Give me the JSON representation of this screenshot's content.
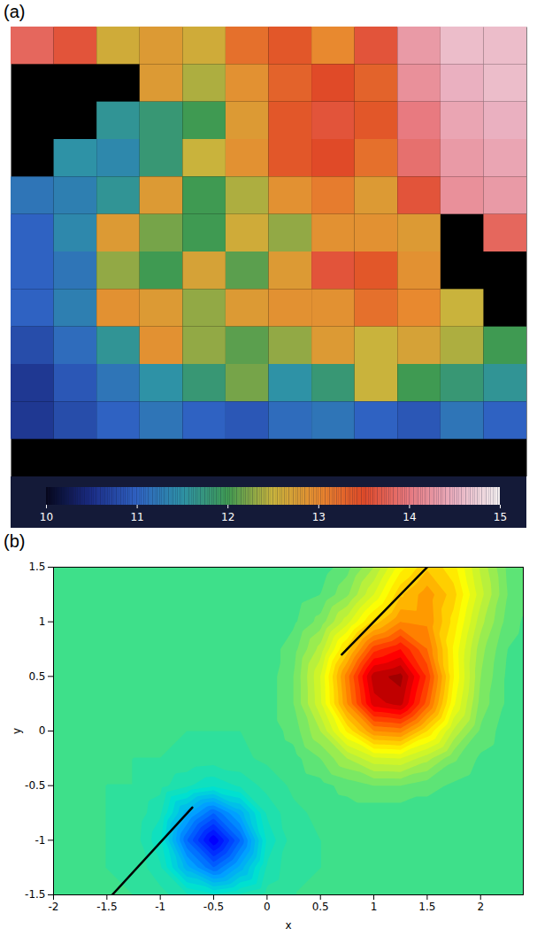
{
  "chart_data": [
    {
      "type": "heatmap",
      "panel": "(a)",
      "tick_labels": false,
      "cells": [
        [
          13.8,
          13.6,
          12.6,
          12.8,
          12.6,
          13.2,
          13.4,
          13.0,
          13.6,
          14.3,
          14.6,
          14.6
        ],
        [
          null,
          null,
          null,
          12.8,
          12.4,
          12.9,
          13.3,
          13.5,
          13.3,
          14.2,
          14.5,
          14.6
        ],
        [
          null,
          null,
          11.6,
          11.8,
          12.0,
          12.8,
          13.4,
          13.6,
          13.4,
          14.0,
          14.4,
          14.5
        ],
        [
          null,
          11.5,
          11.4,
          11.8,
          12.5,
          12.9,
          13.4,
          13.5,
          13.2,
          13.9,
          14.3,
          14.4
        ],
        [
          11.2,
          11.3,
          11.6,
          12.8,
          12.0,
          12.4,
          12.9,
          13.1,
          12.8,
          13.6,
          14.2,
          14.3
        ],
        [
          11.0,
          11.4,
          12.8,
          12.2,
          12.0,
          12.6,
          12.3,
          12.9,
          12.9,
          12.8,
          null,
          13.8
        ],
        [
          11.0,
          11.2,
          12.3,
          12.0,
          12.7,
          12.1,
          12.8,
          13.6,
          13.4,
          12.9,
          null,
          null
        ],
        [
          11.0,
          11.3,
          12.9,
          12.8,
          12.3,
          12.8,
          12.9,
          12.9,
          13.2,
          13.0,
          12.5,
          null
        ],
        [
          10.8,
          11.1,
          11.6,
          12.9,
          12.3,
          12.1,
          12.3,
          12.8,
          12.5,
          12.7,
          12.4,
          12.0
        ],
        [
          10.6,
          10.9,
          11.2,
          11.5,
          11.8,
          12.2,
          11.5,
          11.8,
          12.5,
          12.0,
          11.8,
          11.6
        ],
        [
          10.6,
          10.8,
          11.0,
          11.2,
          11.0,
          10.9,
          11.1,
          11.2,
          11.0,
          10.9,
          11.2,
          11.0
        ],
        [
          null,
          null,
          null,
          null,
          null,
          null,
          null,
          null,
          null,
          null,
          null,
          null
        ]
      ],
      "colorbar": {
        "range": [
          10,
          15
        ],
        "ticks": [
          10,
          11,
          12,
          13,
          14,
          15
        ]
      }
    },
    {
      "type": "contour",
      "panel": "(b)",
      "x_label": "x",
      "y_label": "y",
      "x": [
        -2,
        -1.75,
        -1.5,
        -1.25,
        -1,
        -0.75,
        -0.5,
        -0.25,
        0,
        0.25,
        0.5,
        0.75,
        1,
        1.25,
        1.5,
        1.75,
        2,
        2.25,
        2.5
      ],
      "y": [
        -1.5,
        -1.25,
        -1,
        -0.75,
        -0.5,
        -0.25,
        0,
        0.25,
        0.5,
        0.75,
        1,
        1.25,
        1.5
      ],
      "values": [
        [
          0,
          0,
          0,
          0,
          -0.03,
          -0.09,
          -0.14,
          -0.09,
          -0.03,
          0,
          0,
          0,
          0,
          0,
          0,
          0,
          0,
          0,
          0
        ],
        [
          0,
          0,
          0,
          -0.01,
          -0.09,
          -0.33,
          -0.5,
          -0.33,
          -0.09,
          -0.01,
          0,
          0,
          0,
          0,
          0,
          0,
          0,
          0,
          0
        ],
        [
          0,
          0,
          0,
          -0.02,
          -0.14,
          -0.5,
          -0.75,
          -0.5,
          -0.14,
          -0.02,
          0,
          0,
          0,
          0,
          0,
          0,
          0,
          0,
          0
        ],
        [
          0,
          0,
          0,
          -0.01,
          -0.09,
          -0.33,
          -0.5,
          -0.33,
          -0.09,
          -0.01,
          0.01,
          0.02,
          0.02,
          0.02,
          0.02,
          0.01,
          0,
          0,
          0
        ],
        [
          0,
          0,
          0,
          0,
          -0.03,
          -0.09,
          -0.14,
          -0.09,
          -0.03,
          0.01,
          0.03,
          0.07,
          0.1,
          0.1,
          0.07,
          0.04,
          0.01,
          0,
          0
        ],
        [
          0,
          0,
          0,
          0,
          0,
          -0.01,
          -0.02,
          -0.01,
          0.01,
          0.03,
          0.1,
          0.2,
          0.29,
          0.3,
          0.22,
          0.11,
          0.04,
          0.01,
          0
        ],
        [
          0,
          0,
          0,
          0,
          0,
          0,
          0,
          0,
          0.02,
          0.07,
          0.2,
          0.41,
          0.6,
          0.62,
          0.45,
          0.24,
          0.09,
          0.02,
          0
        ],
        [
          0,
          0,
          0,
          0,
          0,
          0,
          0,
          0,
          0.02,
          0.1,
          0.29,
          0.6,
          0.88,
          0.92,
          0.68,
          0.36,
          0.13,
          0.04,
          0.01
        ],
        [
          0,
          0,
          0,
          0,
          0,
          0,
          0,
          0,
          0.02,
          0.1,
          0.3,
          0.63,
          0.93,
          0.97,
          0.74,
          0.4,
          0.15,
          0.04,
          0.01
        ],
        [
          0,
          0,
          0,
          0,
          0,
          0,
          0,
          0,
          0.02,
          0.08,
          0.22,
          0.47,
          0.73,
          0.8,
          0.65,
          0.39,
          0.17,
          0.05,
          0.01
        ],
        [
          0,
          0,
          0,
          0,
          0,
          0,
          0,
          0,
          0.01,
          0.04,
          0.12,
          0.28,
          0.47,
          0.6,
          0.59,
          0.43,
          0.22,
          0.08,
          0.02
        ],
        [
          0,
          0,
          0,
          0,
          0,
          0,
          0,
          0,
          0,
          0.02,
          0.05,
          0.14,
          0.3,
          0.49,
          0.58,
          0.47,
          0.27,
          0.1,
          0.02
        ],
        [
          0,
          0,
          0,
          0,
          0,
          0,
          0,
          0,
          0,
          0,
          0.02,
          0.08,
          0.2,
          0.38,
          0.49,
          0.42,
          0.24,
          0.09,
          0.02
        ]
      ],
      "color_range": [
        -1,
        1
      ],
      "lines": [
        {
          "x": [
            0.7,
            1.5
          ],
          "y": [
            0.7,
            1.5
          ]
        },
        {
          "x": [
            -1.45,
            -0.7
          ],
          "y": [
            -1.5,
            -0.7
          ]
        }
      ],
      "xlim": [
        -2,
        2.4
      ],
      "ylim": [
        -1.5,
        1.5
      ],
      "xticks": [
        -2,
        -1.5,
        -1,
        -0.5,
        0,
        0.5,
        1,
        1.5,
        2
      ],
      "yticks": [
        -1.5,
        -1,
        -0.5,
        0,
        0.5,
        1,
        1.5
      ]
    }
  ]
}
